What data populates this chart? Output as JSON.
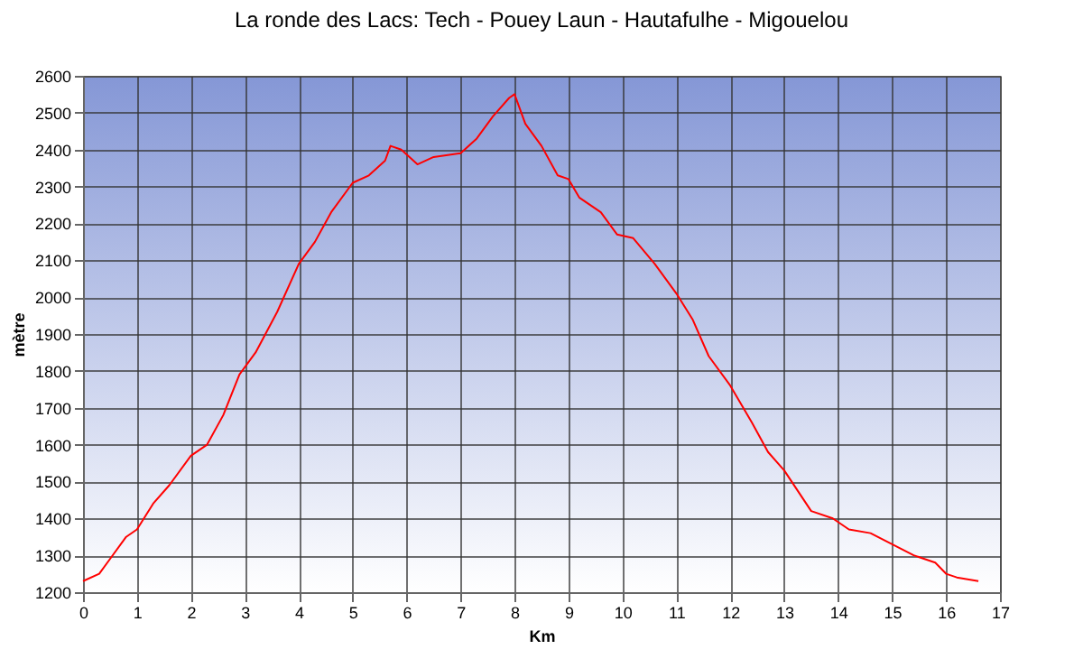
{
  "chart_data": {
    "type": "line",
    "title": "La ronde des Lacs: Tech - Pouey Laun - Hautafulhe - Migouelou",
    "xlabel": "Km",
    "ylabel": "mètre",
    "x": [
      0,
      0.3,
      0.5,
      0.8,
      1.0,
      1.3,
      1.6,
      2.0,
      2.3,
      2.6,
      2.9,
      3.2,
      3.6,
      4.0,
      4.3,
      4.6,
      5.0,
      5.3,
      5.6,
      5.7,
      5.9,
      6.2,
      6.5,
      7.0,
      7.3,
      7.6,
      7.9,
      8.0,
      8.2,
      8.5,
      8.8,
      9.0,
      9.2,
      9.6,
      9.9,
      10.2,
      10.6,
      11.0,
      11.3,
      11.6,
      12.0,
      12.4,
      12.7,
      13.0,
      13.5,
      13.9,
      14.2,
      14.6,
      15.0,
      15.4,
      15.8,
      16.0,
      16.2,
      16.6
    ],
    "series": [
      {
        "color": "#ff0000",
        "values": [
          1230,
          1250,
          1290,
          1350,
          1370,
          1440,
          1490,
          1570,
          1600,
          1680,
          1790,
          1850,
          1960,
          2090,
          2150,
          2230,
          2310,
          2330,
          2370,
          2410,
          2400,
          2360,
          2380,
          2390,
          2430,
          2490,
          2540,
          2550,
          2470,
          2410,
          2330,
          2320,
          2270,
          2230,
          2170,
          2160,
          2090,
          2010,
          1940,
          1840,
          1760,
          1660,
          1580,
          1530,
          1420,
          1400,
          1370,
          1360,
          1330,
          1300,
          1280,
          1250,
          1240,
          1230
        ]
      }
    ],
    "xlim": [
      0,
      17
    ],
    "xticks": [
      0,
      1,
      2,
      3,
      4,
      5,
      6,
      7,
      8,
      9,
      10,
      11,
      12,
      13,
      14,
      15,
      16,
      17
    ],
    "ylim": [
      1200,
      2600
    ],
    "yticks": [
      1200,
      1300,
      1400,
      1500,
      1600,
      1700,
      1800,
      1900,
      2000,
      2100,
      2200,
      2300,
      2400,
      2500,
      2600
    ],
    "grid": true,
    "legend": false,
    "marker": "none",
    "line_style": "solid"
  }
}
